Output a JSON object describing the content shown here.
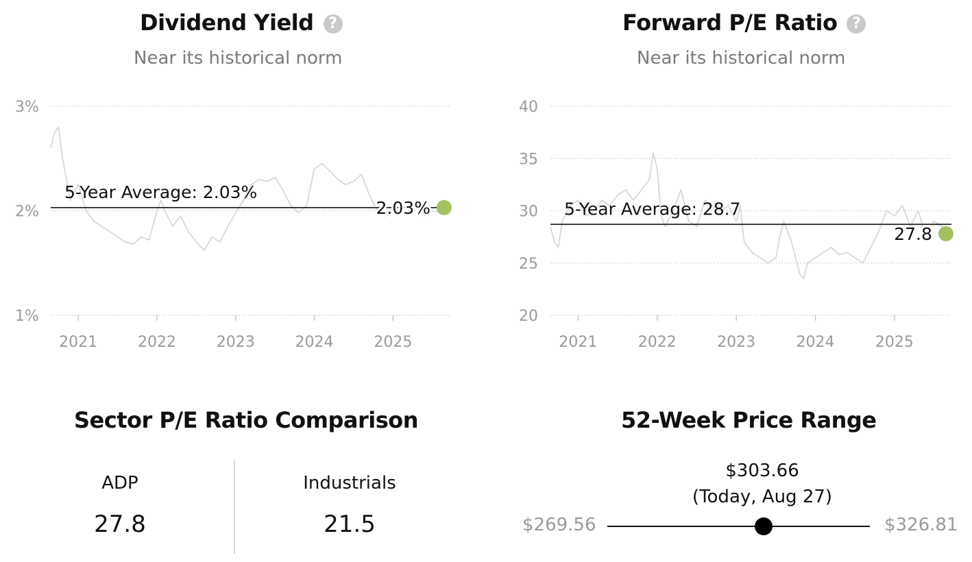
{
  "chart_data": [
    {
      "type": "line",
      "title": "Dividend Yield",
      "subtitle": "Near its historical norm",
      "y_ticks": [
        "3%",
        "2%",
        "1%"
      ],
      "y_tick_values": [
        3,
        2,
        1
      ],
      "ylim": [
        1,
        3
      ],
      "xlim": [
        2020.65,
        2025.72
      ],
      "x_ticks": [
        "2021",
        "2022",
        "2023",
        "2024",
        "2025"
      ],
      "x_tick_values": [
        2021,
        2022,
        2023,
        2024,
        2025
      ],
      "grid": "dotted horizontal",
      "average": {
        "label": "5-Year Average: 2.03%",
        "value": 2.03
      },
      "current": {
        "label": "2.03%",
        "x": 2025.65,
        "value": 2.03
      },
      "series": [
        {
          "x": [
            2020.65,
            2020.7,
            2020.75,
            2020.8,
            2020.85,
            2020.9,
            2021.0,
            2021.1,
            2021.2,
            2021.3,
            2021.4,
            2021.5,
            2021.6,
            2021.7,
            2021.8,
            2021.9,
            2022.0,
            2022.05,
            2022.1,
            2022.2,
            2022.3,
            2022.4,
            2022.5,
            2022.6,
            2022.7,
            2022.8,
            2022.9,
            2023.0,
            2023.1,
            2023.2,
            2023.3,
            2023.4,
            2023.5,
            2023.6,
            2023.7,
            2023.8,
            2023.9,
            2024.0,
            2024.1,
            2024.2,
            2024.3,
            2024.4,
            2024.5,
            2024.6,
            2024.7,
            2024.8,
            2024.9,
            2025.0,
            2025.1,
            2025.2,
            2025.3,
            2025.4,
            2025.5,
            2025.6,
            2025.65
          ],
          "values": [
            2.6,
            2.75,
            2.8,
            2.5,
            2.3,
            2.1,
            2.25,
            2.0,
            1.9,
            1.85,
            1.8,
            1.75,
            1.7,
            1.68,
            1.75,
            1.72,
            2.0,
            2.1,
            2.0,
            1.85,
            1.95,
            1.8,
            1.7,
            1.62,
            1.75,
            1.7,
            1.85,
            1.98,
            2.1,
            2.25,
            2.3,
            2.28,
            2.32,
            2.2,
            2.05,
            1.98,
            2.05,
            2.4,
            2.45,
            2.38,
            2.3,
            2.25,
            2.28,
            2.35,
            2.15,
            2.0,
            1.95,
            2.0,
            2.05,
            2.02,
            2.1,
            1.95,
            2.0,
            1.98,
            2.03
          ]
        }
      ]
    },
    {
      "type": "line",
      "title": "Forward P/E Ratio",
      "subtitle": "Near its historical norm",
      "y_ticks": [
        "40",
        "35",
        "30",
        "25",
        "20"
      ],
      "y_tick_values": [
        40,
        35,
        30,
        25,
        20
      ],
      "ylim": [
        20,
        40
      ],
      "xlim": [
        2020.65,
        2025.72
      ],
      "x_ticks": [
        "2021",
        "2022",
        "2023",
        "2024",
        "2025"
      ],
      "x_tick_values": [
        2021,
        2022,
        2023,
        2024,
        2025
      ],
      "grid": "dotted horizontal",
      "average": {
        "label": "5-Year Average: 28.7",
        "value": 28.7
      },
      "current": {
        "label": "27.8",
        "x": 2025.65,
        "value": 27.8
      },
      "series": [
        {
          "x": [
            2020.65,
            2020.7,
            2020.75,
            2020.8,
            2020.9,
            2021.0,
            2021.1,
            2021.2,
            2021.3,
            2021.4,
            2021.5,
            2021.6,
            2021.7,
            2021.8,
            2021.9,
            2021.95,
            2022.0,
            2022.05,
            2022.1,
            2022.2,
            2022.3,
            2022.4,
            2022.5,
            2022.6,
            2022.7,
            2022.8,
            2022.9,
            2023.0,
            2023.05,
            2023.1,
            2023.2,
            2023.3,
            2023.4,
            2023.5,
            2023.55,
            2023.6,
            2023.7,
            2023.8,
            2023.85,
            2023.9,
            2024.0,
            2024.1,
            2024.2,
            2024.3,
            2024.4,
            2024.5,
            2024.6,
            2024.7,
            2024.8,
            2024.9,
            2025.0,
            2025.1,
            2025.2,
            2025.3,
            2025.4,
            2025.5,
            2025.6,
            2025.65
          ],
          "values": [
            28.5,
            27.0,
            26.5,
            29.0,
            30.5,
            31.0,
            29.5,
            30.0,
            31.0,
            30.5,
            31.5,
            32.0,
            31.0,
            32.0,
            33.0,
            35.5,
            34.0,
            29.5,
            28.5,
            30.0,
            32.0,
            29.0,
            28.5,
            31.0,
            30.5,
            30.0,
            30.5,
            29.0,
            30.5,
            27.0,
            26.0,
            25.5,
            25.0,
            25.5,
            27.5,
            29.0,
            27.0,
            24.0,
            23.5,
            25.0,
            25.5,
            26.0,
            26.5,
            25.8,
            26.0,
            25.5,
            25.0,
            26.5,
            28.0,
            30.0,
            29.5,
            30.5,
            28.5,
            30.0,
            27.5,
            29.0,
            28.5,
            27.8
          ]
        }
      ]
    }
  ],
  "pe_comparison": {
    "title": "Sector P/E Ratio Comparison",
    "left_label": "ADP",
    "left_value": "27.8",
    "right_label": "Industrials",
    "right_value": "21.5"
  },
  "price_range": {
    "title": "52-Week Price Range",
    "current": "$303.66",
    "current_note": "(Today, Aug 27)",
    "low": "$269.56",
    "high": "$326.81",
    "low_value": 269.56,
    "high_value": 326.81,
    "current_value": 303.66
  },
  "colors": {
    "series_line": "#d4d4d4",
    "average_line": "#111111",
    "current_marker": "#a4c160",
    "grid": "#c8c8c8",
    "tick_text": "#9a9a9a",
    "range_marker": "#000000"
  }
}
